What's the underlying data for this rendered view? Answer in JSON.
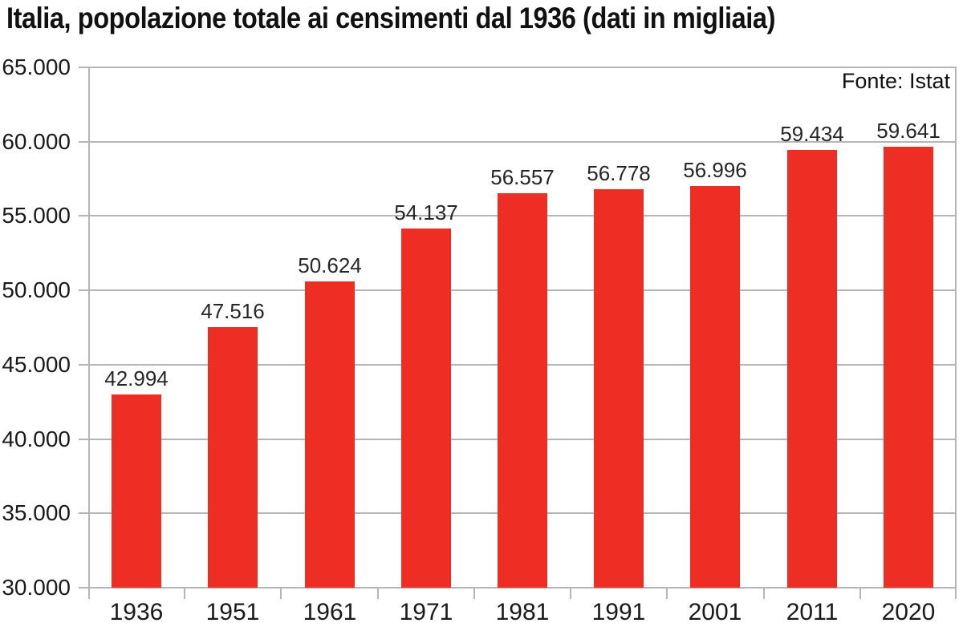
{
  "colors": {
    "bar": "#ee2e24",
    "grid": "#b5b5b5",
    "axis": "#b5b5b5",
    "title_text": "#111111",
    "axis_text": "#1a1a1a",
    "value_text": "#262626"
  },
  "chart_data": {
    "type": "bar",
    "title": "Italia, popolazione totale ai censimenti dal 1936 (dati in migliaia)",
    "source": "Fonte: Istat",
    "categories": [
      "1936",
      "1951",
      "1961",
      "1971",
      "1981",
      "1991",
      "2001",
      "2011",
      "2020"
    ],
    "values": [
      42994,
      47516,
      50624,
      54137,
      56557,
      56778,
      56996,
      59434,
      59641
    ],
    "value_labels": [
      "42.994",
      "47.516",
      "50.624",
      "54.137",
      "56.557",
      "56.778",
      "56.996",
      "59.434",
      "59.641"
    ],
    "xlabel": "",
    "ylabel": "",
    "ylim": [
      30000,
      65000
    ],
    "ytick_step": 5000,
    "ytick_values": [
      30000,
      35000,
      40000,
      45000,
      50000,
      55000,
      60000,
      65000
    ],
    "ytick_labels": [
      "30.000",
      "35.000",
      "40.000",
      "45.000",
      "50.000",
      "55.000",
      "60.000",
      "65.000"
    ],
    "grid": true,
    "legend": false,
    "bar_unit": "migliaia"
  }
}
